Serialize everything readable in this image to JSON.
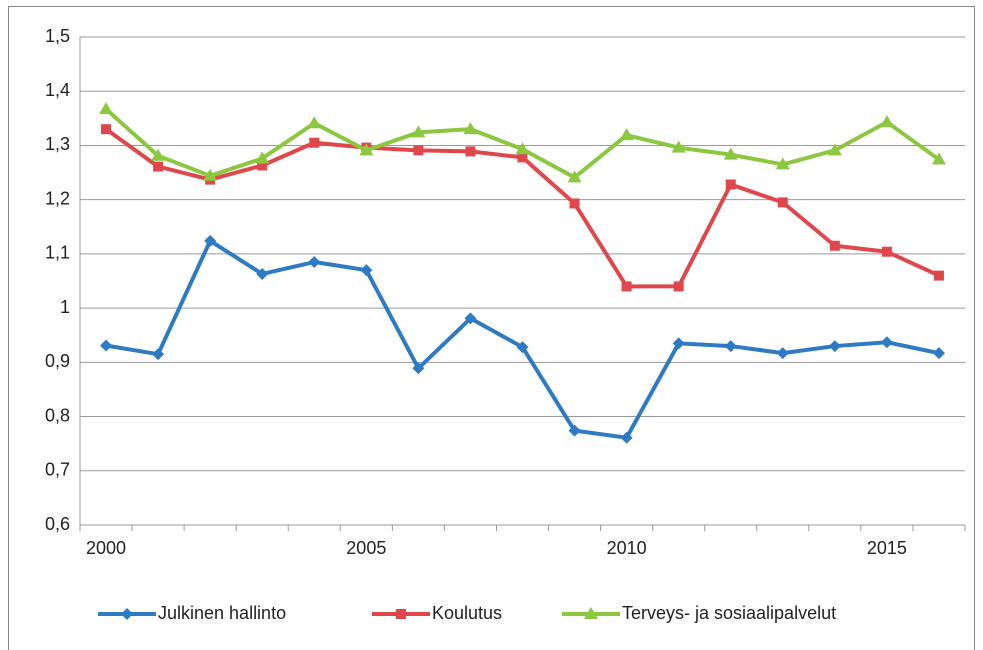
{
  "chart_data": {
    "type": "line",
    "x": [
      2000,
      2001,
      2002,
      2003,
      2004,
      2005,
      2006,
      2007,
      2008,
      2009,
      2010,
      2011,
      2012,
      2013,
      2014,
      2015,
      2016
    ],
    "xlim": [
      1999.5,
      2016.5
    ],
    "xticks": [
      2000,
      2005,
      2010,
      2015
    ],
    "ylim": [
      0.6,
      1.5
    ],
    "yticks": [
      {
        "value": 0.6,
        "label": "0,6"
      },
      {
        "value": 0.7,
        "label": "0,7"
      },
      {
        "value": 0.8,
        "label": "0,8"
      },
      {
        "value": 0.9,
        "label": "0,9"
      },
      1,
      {
        "value": 1.1,
        "label": "1,1"
      },
      {
        "value": 1.2,
        "label": "1,2"
      },
      {
        "value": 1.3,
        "label": "1,3"
      },
      {
        "value": 1.4,
        "label": "1,4"
      },
      {
        "value": 1.5,
        "label": "1,5"
      }
    ],
    "grid": true,
    "legend": "bottom",
    "series": [
      {
        "name": "Julkinen hallinto",
        "color": "#2e7bc4",
        "marker": "diamond",
        "values": [
          0.931,
          0.915,
          1.124,
          1.063,
          1.085,
          1.07,
          0.889,
          0.981,
          0.928,
          0.774,
          0.761,
          0.935,
          0.93,
          0.917,
          0.93,
          0.937,
          0.917
        ]
      },
      {
        "name": "Koulutus",
        "color": "#e0474c",
        "marker": "square",
        "values": [
          1.33,
          1.261,
          1.237,
          1.263,
          1.305,
          1.296,
          1.291,
          1.289,
          1.278,
          1.193,
          1.04,
          1.04,
          1.228,
          1.195,
          1.115,
          1.104,
          1.06
        ]
      },
      {
        "name": "Terveys- ja sosiaalipalvelut",
        "color": "#8cc83f",
        "marker": "triangle",
        "values": [
          1.367,
          1.281,
          1.244,
          1.276,
          1.341,
          1.291,
          1.324,
          1.33,
          1.293,
          1.241,
          1.319,
          1.296,
          1.283,
          1.265,
          1.291,
          1.343,
          1.274
        ]
      }
    ]
  }
}
